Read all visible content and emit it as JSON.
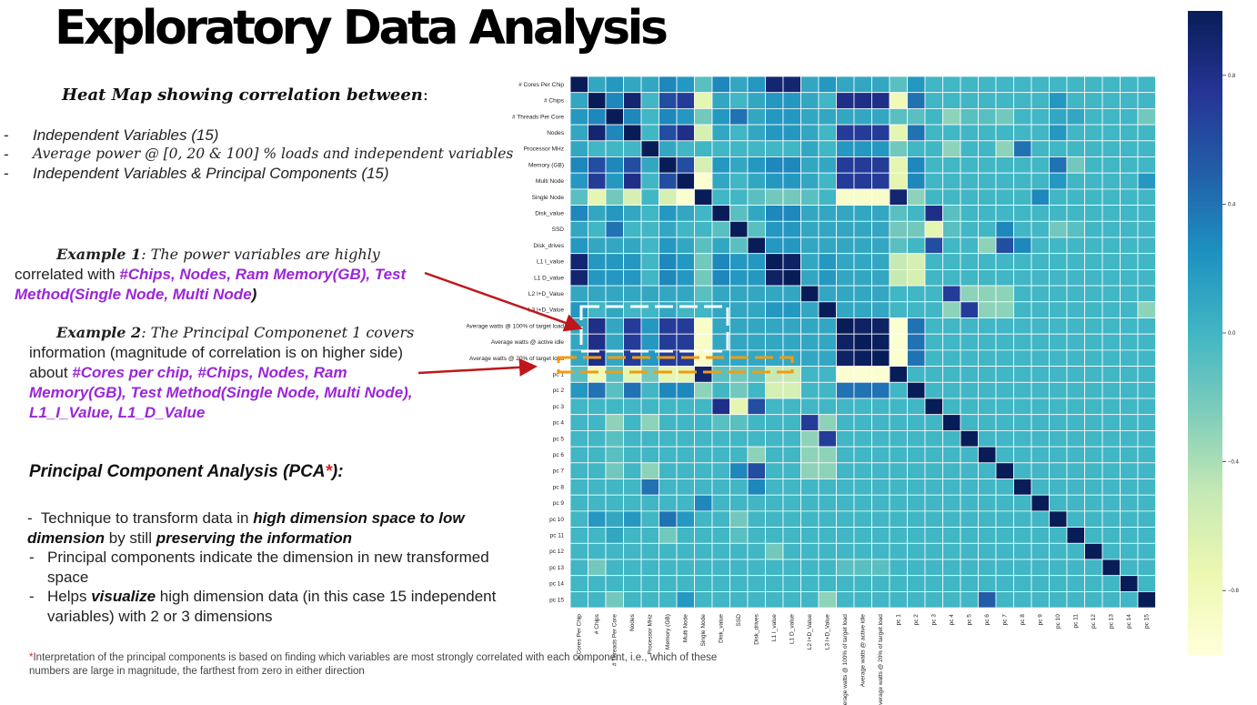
{
  "slide": {
    "title": "Exploratory Data Analysis",
    "subtitle": "Heat Map showing correlation between",
    "subtitle_colon": ":",
    "bullets": [
      {
        "dash": "-",
        "text": "Independent Variables (15)"
      },
      {
        "dash": "-",
        "text": "Average power @ [0, 20 & 100] % loads and independent variables"
      },
      {
        "dash": "-",
        "text": "Independent Variables & Principal Components (15)"
      }
    ],
    "example1": {
      "label": "Example 1",
      "lead": ": The power variables are highly",
      "plain": "correlated with ",
      "highlight": "#Chips, Nodes, Ram Memory(GB), Test Method(Single Node, Multi Node",
      "tail": ")"
    },
    "example2": {
      "label": "Example 2",
      "lead": ": The Principal Componenet 1 covers",
      "plain": "information (magnitude of correlation is on higher side) about ",
      "highlight": "#Cores per chip, #Chips, Nodes, Ram Memory(GB), Test Method(Single Node, Multi Node), L1_I_Value, L1_D_Value"
    },
    "pca": {
      "heading": "Principal Component Analysis (PCA",
      "heading_star": "*",
      "heading_end": "):",
      "items": [
        {
          "dash": "-",
          "t1": "  Technique to transform data in ",
          "b1": "high dimension space to low dimension",
          "t2": " by still ",
          "b2": "preserving the information",
          "t3": ""
        },
        {
          "dash": "-",
          "t1": "Principal components indicate the dimension in new transformed space",
          "b1": "",
          "t2": "",
          "b2": "",
          "t3": ""
        },
        {
          "dash": "-",
          "t1": "Helps ",
          "b1": "visualize",
          "t2": " high dimension data (in this case 15 independent variables) with 2 or 3 dimensions",
          "b2": "",
          "t3": ""
        }
      ]
    },
    "footnote_star": "*",
    "footnote": "Interpretation of the principal components is based on finding which variables are most strongly correlated with each component, i.e., which of these numbers are large in magnitude, the farthest from zero in either direction"
  },
  "colors": {
    "purple": "#9b26d9",
    "arrow": "#c0161a",
    "white_box": "#ffffff",
    "orange_box": "#f39c12"
  },
  "chart_data": {
    "type": "heatmap",
    "labels": [
      "# Cores Per Chip",
      "# Chips",
      "# Threads Per Core",
      "Nodes",
      "Processor MHz",
      "Memory (GB)",
      "Multi Node",
      "Single Node",
      "Disk_value",
      "SSD",
      "Disk_drives",
      "L1 I_value",
      "L1 D_value",
      "L2 I+D_Value",
      "L3 I+D_Value",
      "Average watts @ 100% of target load",
      "Average watts @ active idle",
      "Average watts @ 20% of target load",
      "pc 1",
      "pc 2",
      "pc 3",
      "pc 4",
      "pc 5",
      "pc 6",
      "pc 7",
      "pc 8",
      "pc 9",
      "pc 10",
      "pc 11",
      "pc 12",
      "pc 13",
      "pc 14",
      "pc 15"
    ],
    "colorbar": {
      "ticks": [
        "0.8",
        "0.4",
        "0.0",
        "−0.4",
        "−0.8"
      ],
      "tick_values": [
        0.8,
        0.4,
        0.0,
        -0.4,
        -0.8
      ],
      "range": [
        -1,
        1
      ],
      "colormap": "YlGnBu"
    },
    "values": [
      [
        1,
        0.1,
        0.2,
        0.1,
        0.1,
        0.3,
        0.2,
        -0.1,
        0.3,
        0.1,
        0.2,
        0.9,
        0.9,
        0.1,
        0.2,
        0.1,
        0.1,
        0.1,
        -0.1,
        0.2,
        0,
        0,
        0,
        0,
        0,
        0,
        0,
        0,
        0,
        0,
        0,
        0,
        0
      ],
      [
        0.1,
        1,
        0.3,
        0.9,
        0,
        0.6,
        0.7,
        -0.7,
        0.1,
        0,
        0.1,
        0.2,
        0.2,
        0.1,
        0,
        0.8,
        0.8,
        0.8,
        -0.8,
        0.4,
        0,
        0,
        0,
        0,
        0,
        0,
        0,
        0.2,
        0,
        0,
        0,
        0,
        0
      ],
      [
        0.2,
        0.3,
        1,
        0.3,
        0,
        0.3,
        0.2,
        -0.2,
        0.2,
        0.4,
        0.1,
        0.2,
        0.2,
        0.1,
        0.1,
        0.1,
        0.1,
        0.1,
        -0.1,
        -0.1,
        0,
        -0.3,
        -0.1,
        -0.1,
        -0.2,
        0,
        0,
        0.1,
        0.1,
        0,
        0,
        0,
        -0.2
      ],
      [
        0.1,
        0.9,
        0.3,
        1,
        0,
        0.6,
        0.8,
        -0.6,
        0.1,
        0,
        0.1,
        0.2,
        0.2,
        0.1,
        0,
        0.7,
        0.7,
        0.7,
        -0.7,
        0.4,
        0,
        0,
        0,
        0,
        0,
        0,
        0,
        0.2,
        0,
        0,
        0,
        0,
        0
      ],
      [
        0.1,
        0,
        0,
        0,
        1,
        0.1,
        0,
        0,
        0,
        0,
        0,
        0,
        0,
        0.1,
        0,
        0.2,
        0.2,
        0.2,
        -0.2,
        0,
        0,
        -0.3,
        0,
        0,
        -0.3,
        0.4,
        0,
        0,
        0,
        0,
        0,
        0,
        0
      ],
      [
        0.3,
        0.6,
        0.3,
        0.6,
        0.1,
        1,
        0.6,
        -0.6,
        0.2,
        0.1,
        0.2,
        0.3,
        0.3,
        0.1,
        0.1,
        0.7,
        0.7,
        0.7,
        -0.7,
        0.3,
        0,
        0,
        0,
        0,
        0,
        0,
        0,
        0.4,
        -0.2,
        0,
        0,
        0,
        0
      ],
      [
        0.2,
        0.7,
        0.2,
        0.8,
        0,
        0.6,
        1,
        -0.95,
        0.1,
        0,
        0.1,
        0.2,
        0.2,
        0.1,
        0,
        0.7,
        0.7,
        0.7,
        -0.7,
        0.3,
        0,
        0,
        0,
        0,
        0,
        0,
        0,
        0.2,
        0,
        0,
        0,
        0,
        0.2
      ],
      [
        -0.1,
        -0.7,
        -0.2,
        -0.6,
        0,
        -0.6,
        -0.95,
        1,
        0,
        0,
        -0.1,
        -0.2,
        -0.2,
        -0.1,
        0,
        -0.9,
        -0.9,
        -0.9,
        0.9,
        -0.3,
        0,
        0,
        0,
        0,
        0,
        0,
        0.3,
        0,
        0,
        0,
        0,
        0,
        0
      ],
      [
        0.3,
        0.1,
        0.2,
        0.1,
        0,
        0.2,
        0.1,
        0,
        1,
        -0.1,
        0.1,
        0.3,
        0.3,
        0.1,
        0.1,
        0.1,
        0.1,
        0.1,
        -0.1,
        0,
        0.8,
        -0.1,
        0,
        0,
        0,
        0,
        0,
        0,
        0,
        0,
        0,
        0,
        0
      ],
      [
        0.1,
        0,
        0.4,
        0,
        0,
        0.1,
        0,
        0,
        -0.1,
        1,
        -0.1,
        0.2,
        0.2,
        0.1,
        0.1,
        0.1,
        0.1,
        0.1,
        -0.2,
        -0.2,
        -0.7,
        -0.1,
        0,
        0,
        0.3,
        0,
        0,
        -0.2,
        -0.1,
        0,
        0,
        0,
        0
      ],
      [
        0.2,
        0.1,
        0.1,
        0.1,
        0,
        0.2,
        0.1,
        -0.1,
        0.1,
        -0.1,
        1,
        0.2,
        0.2,
        0.1,
        0.1,
        0.1,
        0.1,
        0.1,
        -0.1,
        0,
        0.6,
        0,
        0,
        -0.3,
        0.6,
        0.3,
        0,
        0,
        0,
        0,
        0,
        0,
        0
      ],
      [
        0.9,
        0.2,
        0.2,
        0.2,
        0,
        0.3,
        0.2,
        -0.2,
        0.3,
        0.2,
        0.2,
        1,
        0.95,
        0.1,
        0.2,
        0.1,
        0.1,
        0.1,
        -0.5,
        -0.6,
        0,
        0,
        0,
        0,
        0,
        0,
        0,
        0,
        0,
        0,
        0,
        0,
        0
      ],
      [
        0.9,
        0.2,
        0.2,
        0.2,
        0,
        0.3,
        0.2,
        -0.2,
        0.3,
        0.2,
        0.2,
        0.95,
        1,
        0.1,
        0.2,
        0.1,
        0.1,
        0.1,
        -0.5,
        -0.6,
        0,
        0,
        0,
        0,
        0,
        0,
        0,
        0,
        0,
        0,
        0,
        0,
        0
      ],
      [
        0.1,
        0.1,
        0.1,
        0.1,
        0.1,
        0.1,
        0.1,
        -0.1,
        0.1,
        0.1,
        0.1,
        0.1,
        0.1,
        1,
        0.1,
        0.1,
        0.1,
        0.1,
        0,
        0,
        0,
        0.7,
        -0.3,
        -0.3,
        -0.3,
        0,
        0,
        0,
        0,
        0,
        0,
        0,
        0
      ],
      [
        0.2,
        0,
        0.1,
        0,
        0,
        0.1,
        0,
        0,
        0.1,
        0.1,
        0.1,
        0.2,
        0.2,
        0.1,
        1,
        0.1,
        0.1,
        0.1,
        0,
        0,
        0,
        -0.3,
        0.7,
        -0.3,
        -0.3,
        0,
        0,
        0,
        0,
        0,
        0,
        0,
        -0.3
      ],
      [
        0.1,
        0.8,
        0.1,
        0.7,
        0.2,
        0.7,
        0.7,
        -0.9,
        0.1,
        0.1,
        0.1,
        0.1,
        0.1,
        0.1,
        0.1,
        1,
        0.95,
        0.95,
        -0.95,
        0.4,
        0,
        0,
        0,
        0,
        0,
        0,
        0,
        0,
        0,
        0,
        0,
        0,
        0
      ],
      [
        0.1,
        0.8,
        0.1,
        0.7,
        0.2,
        0.7,
        0.7,
        -0.9,
        0.1,
        0.1,
        0.1,
        0.1,
        0.1,
        0.1,
        0.1,
        0.95,
        1,
        0.98,
        -0.95,
        0.4,
        0,
        0,
        0,
        0,
        0,
        0,
        0,
        0,
        0,
        0,
        0,
        0,
        0
      ],
      [
        0.1,
        0.8,
        0.1,
        0.7,
        0.2,
        0.7,
        0.7,
        -0.9,
        0.1,
        0.1,
        0.1,
        0.1,
        0.1,
        0.1,
        0.1,
        0.95,
        0.98,
        1,
        -0.95,
        0.4,
        0,
        0,
        0,
        0,
        0,
        0,
        0,
        0,
        0,
        0,
        0,
        0,
        0
      ],
      [
        -0.1,
        -0.8,
        -0.1,
        -0.7,
        -0.2,
        -0.7,
        -0.7,
        0.9,
        -0.1,
        -0.2,
        -0.1,
        -0.5,
        -0.5,
        0,
        0,
        -0.95,
        -0.95,
        -0.95,
        1,
        0,
        0,
        0,
        0,
        0,
        0,
        0,
        0,
        0,
        0,
        0,
        0,
        0,
        0
      ],
      [
        0.2,
        0.4,
        -0.1,
        0.4,
        0,
        0.3,
        0.3,
        -0.3,
        0,
        -0.2,
        0,
        -0.6,
        -0.6,
        0,
        0,
        0.4,
        0.4,
        0.4,
        0,
        1,
        0,
        0,
        0,
        0,
        0,
        0,
        0,
        0,
        0,
        0,
        0,
        0,
        0
      ],
      [
        0,
        0,
        0,
        0,
        0,
        0,
        0,
        0,
        0.8,
        -0.7,
        0.6,
        0,
        0,
        0,
        0,
        0,
        0,
        0,
        0,
        0,
        1,
        0,
        0,
        0,
        0,
        0,
        0,
        0,
        0,
        0,
        0,
        0,
        0
      ],
      [
        0,
        0,
        -0.3,
        0,
        -0.3,
        0,
        0,
        0,
        -0.1,
        -0.1,
        0,
        0,
        0,
        0.7,
        -0.3,
        0,
        0,
        0,
        0,
        0,
        0,
        1,
        0,
        0,
        0,
        0,
        0,
        0,
        0,
        0,
        0,
        0,
        0
      ],
      [
        0,
        0,
        -0.1,
        0,
        0,
        0,
        0,
        0,
        0,
        0,
        0,
        0,
        0,
        -0.3,
        0.7,
        0,
        0,
        0,
        0,
        0,
        0,
        0,
        1,
        0,
        0,
        0,
        0,
        0,
        0,
        0,
        0,
        0,
        0
      ],
      [
        0,
        0,
        -0.1,
        0,
        0,
        0,
        0,
        0,
        0,
        0,
        -0.3,
        0,
        0,
        -0.3,
        -0.3,
        0,
        0,
        0,
        0,
        0,
        0,
        0,
        0,
        1,
        0,
        0,
        0,
        0,
        0,
        0,
        0,
        0,
        0
      ],
      [
        0,
        0,
        -0.2,
        0,
        -0.3,
        0,
        0,
        0,
        0,
        0.3,
        0.6,
        0,
        0,
        -0.3,
        -0.3,
        0,
        0,
        0,
        0,
        0,
        0,
        0,
        0,
        0,
        1,
        0,
        0,
        0,
        0,
        0,
        0,
        0,
        0
      ],
      [
        0,
        0,
        0,
        0,
        0.4,
        0,
        0,
        0,
        0,
        0,
        0.3,
        0,
        0,
        0,
        0,
        0,
        0,
        0,
        0,
        0,
        0,
        0,
        0,
        0,
        0,
        1,
        0,
        0,
        0,
        0,
        0,
        0,
        0
      ],
      [
        0,
        0,
        0,
        0,
        0,
        0,
        0,
        0.3,
        0,
        0,
        0,
        0,
        0,
        0,
        0,
        0,
        0,
        0,
        0,
        0,
        0,
        0,
        0,
        0,
        0,
        0,
        1,
        0,
        0,
        0,
        0,
        0,
        0
      ],
      [
        0,
        0.2,
        0.1,
        0.2,
        0,
        0.4,
        0.2,
        0,
        0,
        -0.2,
        0,
        0,
        0,
        0,
        0,
        0,
        0,
        0,
        0,
        0,
        0,
        0,
        0,
        0,
        0,
        0,
        0,
        1,
        0,
        0,
        0,
        0,
        0
      ],
      [
        0,
        0,
        0.1,
        0,
        0,
        -0.2,
        0,
        0,
        0,
        -0.1,
        0,
        0,
        0,
        0,
        0,
        0,
        0,
        0,
        0,
        0,
        0,
        0,
        0,
        0,
        0,
        0,
        0,
        0,
        1,
        0,
        0,
        0,
        0
      ],
      [
        0,
        0,
        0,
        0,
        0,
        0,
        0,
        0,
        0,
        0,
        0,
        -0.2,
        0,
        0,
        0,
        0,
        0,
        0,
        0,
        0,
        0,
        0,
        0,
        0,
        0,
        0,
        0,
        0,
        0,
        1,
        0,
        0,
        0
      ],
      [
        0,
        -0.2,
        0,
        0,
        0,
        0,
        0,
        0,
        0,
        0,
        0,
        0,
        0,
        0,
        0,
        -0.1,
        -0.1,
        -0.1,
        0,
        0,
        0,
        0,
        0,
        0,
        0,
        0,
        0,
        0,
        0,
        0,
        1,
        0,
        0
      ],
      [
        0,
        0,
        0,
        0,
        0,
        0,
        0,
        0,
        0,
        0,
        0,
        0,
        0,
        0,
        0,
        0,
        0,
        0,
        0,
        0,
        0,
        0,
        0,
        0,
        0,
        0,
        0,
        0,
        0,
        0,
        0,
        1,
        0
      ],
      [
        0,
        0,
        -0.2,
        0,
        0,
        0,
        0.2,
        0,
        0,
        0,
        0,
        0,
        0,
        0,
        -0.3,
        0,
        0,
        0,
        0,
        0,
        0,
        0,
        0,
        0.5,
        0,
        0,
        0,
        0,
        0,
        0,
        0,
        0,
        1
      ]
    ]
  }
}
